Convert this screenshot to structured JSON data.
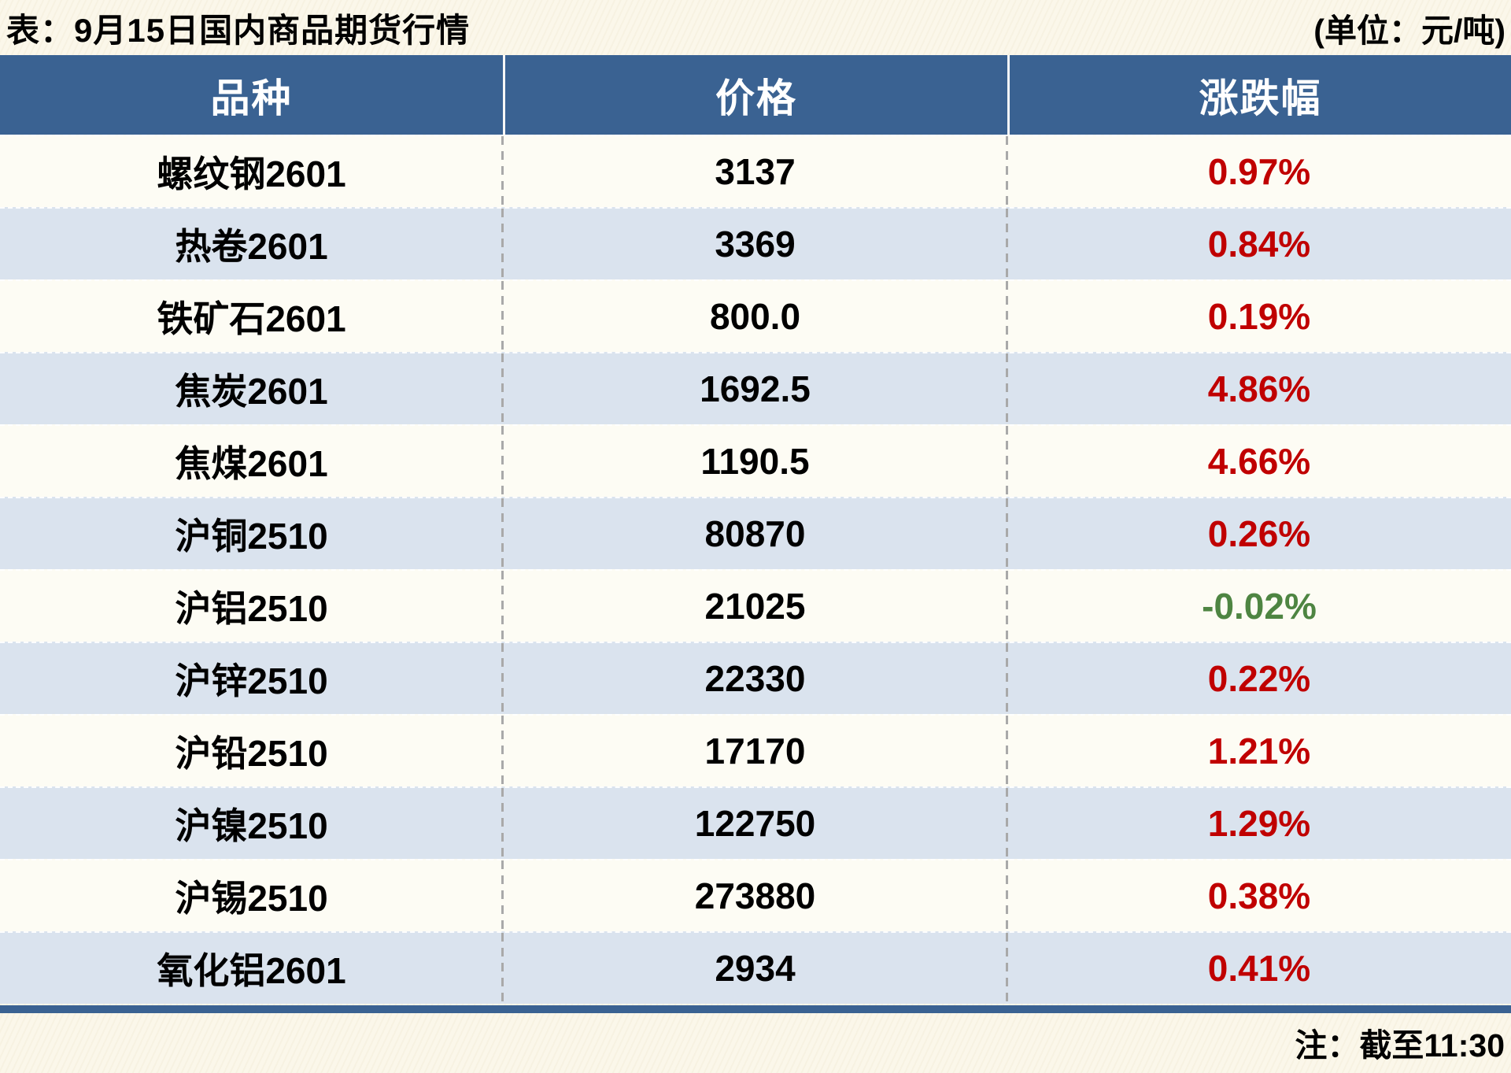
{
  "page": {
    "title": "表：9月15日国内商品期货行情",
    "unit_label": "(单位：元/吨)",
    "note": "注：截至11:30"
  },
  "colors": {
    "header_bg": "#3a6292",
    "row_cream": "#fdfcf4",
    "row_blue": "#dae3ee",
    "up_red": "#c00000",
    "down_green": "#4e8542",
    "divider_gray": "#a9a9a9",
    "canvas_bg": "#fbf7ea",
    "header_text": "#ffffff"
  },
  "chart_data": {
    "type": "table",
    "title": "表：9月15日国内商品期货行情",
    "unit": "(单位：元/吨)",
    "note": "注：截至11:30",
    "columns": [
      "品种",
      "价格",
      "涨跌幅"
    ],
    "rows": [
      {
        "variety": "螺纹钢2601",
        "price": "3137",
        "change": "0.97%",
        "direction": "up"
      },
      {
        "variety": "热卷2601",
        "price": "3369",
        "change": "0.84%",
        "direction": "up"
      },
      {
        "variety": "铁矿石2601",
        "price": "800.0",
        "change": "0.19%",
        "direction": "up"
      },
      {
        "variety": "焦炭2601",
        "price": "1692.5",
        "change": "4.86%",
        "direction": "up"
      },
      {
        "variety": "焦煤2601",
        "price": "1190.5",
        "change": "4.66%",
        "direction": "up"
      },
      {
        "variety": "沪铜2510",
        "price": "80870",
        "change": "0.26%",
        "direction": "up"
      },
      {
        "variety": "沪铝2510",
        "price": "21025",
        "change": "-0.02%",
        "direction": "down"
      },
      {
        "variety": "沪锌2510",
        "price": "22330",
        "change": "0.22%",
        "direction": "up"
      },
      {
        "variety": "沪铅2510",
        "price": "17170",
        "change": "1.21%",
        "direction": "up"
      },
      {
        "variety": "沪镍2510",
        "price": "122750",
        "change": "1.29%",
        "direction": "up"
      },
      {
        "variety": "沪锡2510",
        "price": "273880",
        "change": "0.38%",
        "direction": "up"
      },
      {
        "variety": "氧化铝2601",
        "price": "2934",
        "change": "0.41%",
        "direction": "up"
      }
    ]
  }
}
